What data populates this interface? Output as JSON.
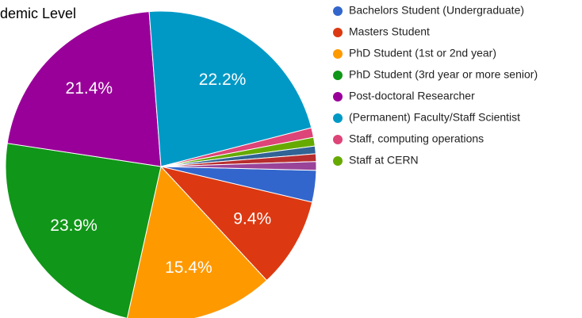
{
  "chart_data": {
    "type": "pie",
    "title": "demic Level",
    "categories": [
      "Bachelors Student (Undergraduate)",
      "Masters Student",
      "PhD Student (1st or 2nd year)",
      "PhD Student (3rd year or more senior)",
      "Post-doctoral Researcher",
      "(Permanent) Faculty/Staff Scientist",
      "Staff, computing operations",
      "Staff at CERN",
      null,
      null,
      null
    ],
    "values": [
      3.3,
      9.4,
      15.4,
      23.9,
      21.4,
      22.2,
      1.0,
      0.9,
      0.8,
      0.8,
      0.9
    ],
    "value_labels": [
      null,
      "9.4%",
      "15.4%",
      "23.9%",
      "21.4%",
      "22.2%",
      null,
      null,
      null,
      null,
      null
    ],
    "colors": [
      "#3366cc",
      "#dc3912",
      "#ff9900",
      "#109618",
      "#990099",
      "#0099c6",
      "#dd4477",
      "#66aa00",
      "#316395",
      "#b82e2e",
      "#994499"
    ],
    "legend": "right"
  }
}
